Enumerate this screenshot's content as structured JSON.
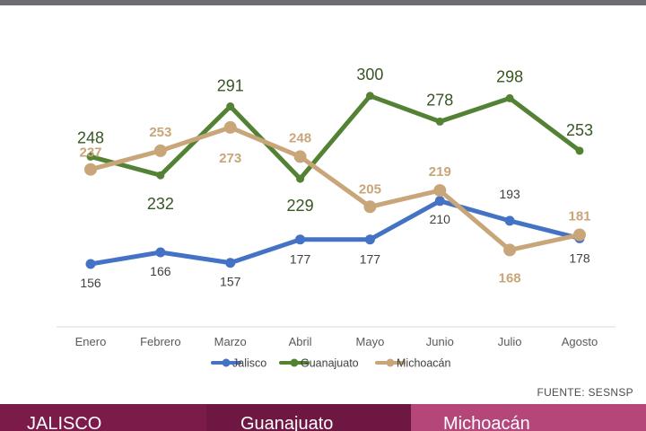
{
  "chart_data": {
    "type": "line",
    "categories": [
      "Enero",
      "Febrero",
      "Marzo",
      "Abril",
      "Mayo",
      "Junio",
      "Julio",
      "Agosto"
    ],
    "series": [
      {
        "name": "Jalisco",
        "color": "#4472c4",
        "values": [
          156,
          166,
          157,
          177,
          177,
          210,
          193,
          178
        ]
      },
      {
        "name": "Guanajuato",
        "color": "#548235",
        "values": [
          248,
          232,
          291,
          229,
          300,
          278,
          298,
          253
        ]
      },
      {
        "name": "Michoacán",
        "color": "#c9a57a",
        "values": [
          237,
          253,
          273,
          248,
          205,
          219,
          168,
          181
        ]
      }
    ],
    "ylim": [
      100,
      320
    ],
    "grid": false,
    "legend": "bottom"
  },
  "source": "FUENTE: SESNSP",
  "footer_tabs": [
    "JALISCO",
    "Guanajuato",
    "Michoacán"
  ]
}
